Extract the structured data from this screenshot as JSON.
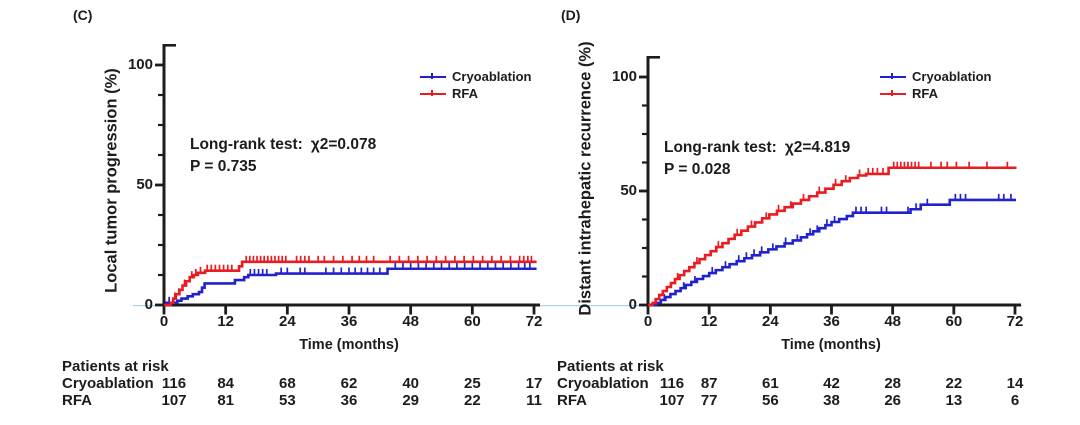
{
  "decor": {
    "zero_line_color": "#aad5ea",
    "axis_color": "#1c1c1c",
    "text_color": "#1c1c1c"
  },
  "chart_data": [
    {
      "panel_label": "(C)",
      "type": "line",
      "subtype": "kaplan-meier-cumulative-incidence-step",
      "title": "",
      "ylabel": "Local tumor progression (%)",
      "xlabel": "Time (months)",
      "xlim": [
        0,
        72
      ],
      "ylim": [
        0,
        100
      ],
      "x_ticks": [
        0,
        12,
        24,
        36,
        48,
        60,
        72
      ],
      "y_ticks_major": [
        0,
        50,
        100
      ],
      "y_tick_labels": [
        "0",
        "50",
        "100"
      ],
      "y_minor_tick_step": 12.5,
      "grid": "off",
      "legend_position": "upper right",
      "stats": {
        "test_label": "Long-rank test:",
        "chi": "χ2=0.078",
        "p": "P = 0.735"
      },
      "series": [
        {
          "name": "Cryoablation",
          "color": "#2222cd",
          "steps": [
            [
              0,
              0
            ],
            [
              0.5,
              0.9
            ],
            [
              2.6,
              1.8
            ],
            [
              3.4,
              2.7
            ],
            [
              4.6,
              3.6
            ],
            [
              5.6,
              4.5
            ],
            [
              6.8,
              5.4
            ],
            [
              7.4,
              7.2
            ],
            [
              7.9,
              9.0
            ],
            [
              13.8,
              10.4
            ],
            [
              15.6,
              11.6
            ],
            [
              16.4,
              12.5
            ],
            [
              21.8,
              13.1
            ],
            [
              43.5,
              15.1
            ],
            [
              72.5,
              15.1
            ]
          ],
          "censor_months": [
            1.0,
            16.8,
            17.6,
            18.4,
            19.2,
            20.0,
            22.8,
            24.0,
            26.5,
            27.4,
            31.5,
            33.0,
            34.5,
            36.0,
            37.2,
            38.4,
            39.6,
            40.8,
            42.0,
            45.0,
            46.5,
            48.0,
            49.5,
            51.0,
            52.5,
            54.0,
            55.5,
            57.0,
            58.5,
            60.0,
            61.5,
            63.0,
            64.5,
            66.0,
            67.5,
            69.0,
            70.2,
            71.2
          ]
        },
        {
          "name": "RFA",
          "color": "#ea1c21",
          "steps": [
            [
              0,
              0
            ],
            [
              1.3,
              0.9
            ],
            [
              1.8,
              2.7
            ],
            [
              2.3,
              4.5
            ],
            [
              3.0,
              6.3
            ],
            [
              3.6,
              8.1
            ],
            [
              4.3,
              9.9
            ],
            [
              5.0,
              11.6
            ],
            [
              5.8,
              12.5
            ],
            [
              6.6,
              13.4
            ],
            [
              8.0,
              14.3
            ],
            [
              14.6,
              16.1
            ],
            [
              15.2,
              18.0
            ],
            [
              72.5,
              18.0
            ]
          ],
          "censor_months": [
            2.1,
            2.9,
            4.0,
            5.4,
            6.2,
            7.1,
            8.4,
            9.2,
            10.0,
            10.8,
            11.6,
            12.4,
            13.2,
            16.0,
            16.7,
            17.4,
            18.1,
            18.8,
            19.5,
            20.2,
            20.9,
            21.6,
            22.3,
            23.0,
            23.7,
            25.8,
            26.6,
            27.4,
            28.2,
            30.0,
            31.2,
            33.0,
            34.8,
            36.6,
            38.0,
            39.4,
            40.8,
            44.0,
            45.8,
            47.6,
            49.4,
            51.2,
            53.0,
            54.8,
            56.6,
            58.4,
            60.2,
            62.0,
            63.8,
            65.6,
            67.4,
            69.2,
            70.0,
            70.8,
            71.5
          ]
        }
      ],
      "at_risk": {
        "title": "Patients at risk",
        "rows": [
          {
            "label": "Cryoablation",
            "counts": [
              "116",
              "84",
              "68",
              "62",
              "40",
              "25",
              "17"
            ]
          },
          {
            "label": "RFA",
            "counts": [
              "107",
              "81",
              "53",
              "36",
              "29",
              "22",
              "11"
            ]
          }
        ]
      }
    },
    {
      "panel_label": "(D)",
      "type": "line",
      "subtype": "kaplan-meier-cumulative-incidence-step",
      "title": "",
      "ylabel": "Distant intrahepatic recurrence (%)",
      "xlabel": "Time (months)",
      "xlim": [
        0,
        72
      ],
      "ylim": [
        0,
        100
      ],
      "x_ticks": [
        0,
        12,
        24,
        36,
        48,
        60,
        72
      ],
      "y_ticks_major": [
        0,
        50,
        100
      ],
      "y_tick_labels": [
        "0",
        "50",
        "100"
      ],
      "y_minor_tick_step": 12.5,
      "grid": "off",
      "legend_position": "upper right",
      "stats": {
        "test_label": "Long-rank test:",
        "chi": "χ2=4.819",
        "p": "P = 0.028"
      },
      "series": [
        {
          "name": "Cryoablation",
          "color": "#2222cd",
          "steps": [
            [
              0,
              0
            ],
            [
              1.6,
              0.9
            ],
            [
              2.5,
              2.2
            ],
            [
              3.4,
              3.5
            ],
            [
              4.4,
              4.8
            ],
            [
              5.4,
              6.1
            ],
            [
              6.4,
              7.4
            ],
            [
              7.4,
              8.8
            ],
            [
              8.5,
              10.1
            ],
            [
              9.6,
              11.4
            ],
            [
              10.8,
              12.7
            ],
            [
              12.0,
              14.0
            ],
            [
              13.3,
              15.3
            ],
            [
              14.6,
              16.6
            ],
            [
              16.0,
              17.9
            ],
            [
              17.4,
              19.2
            ],
            [
              18.9,
              20.5
            ],
            [
              20.4,
              21.8
            ],
            [
              22.0,
              23.1
            ],
            [
              23.6,
              24.4
            ],
            [
              25.2,
              25.7
            ],
            [
              26.8,
              27.0
            ],
            [
              28.4,
              28.3
            ],
            [
              30.0,
              29.7
            ],
            [
              31.2,
              31.0
            ],
            [
              32.4,
              32.3
            ],
            [
              33.6,
              33.7
            ],
            [
              34.8,
              35.0
            ],
            [
              36.0,
              36.4
            ],
            [
              37.5,
              37.7
            ],
            [
              39.0,
              39.0
            ],
            [
              40.2,
              40.5
            ],
            [
              51.5,
              42.0
            ],
            [
              53.5,
              44.0
            ],
            [
              59.2,
              46.1
            ],
            [
              72.2,
              46.1
            ]
          ],
          "censor_months": [
            3.2,
            7.0,
            9.2,
            12.6,
            15.2,
            17.8,
            19.3,
            20.8,
            22.3,
            24.5,
            27.0,
            29.3,
            31.8,
            33.2,
            35.1,
            36.6,
            40.8,
            41.8,
            42.8,
            45.8,
            46.8,
            51.0,
            52.6,
            54.8,
            60.3,
            61.3,
            62.3,
            68.8,
            69.8,
            71.2
          ]
        },
        {
          "name": "RFA",
          "color": "#ea1c21",
          "steps": [
            [
              0,
              0
            ],
            [
              0.9,
              0.9
            ],
            [
              1.5,
              2.6
            ],
            [
              2.2,
              4.4
            ],
            [
              2.9,
              6.1
            ],
            [
              3.7,
              7.9
            ],
            [
              4.5,
              9.6
            ],
            [
              5.3,
              11.4
            ],
            [
              6.2,
              13.1
            ],
            [
              7.1,
              14.9
            ],
            [
              8.1,
              16.6
            ],
            [
              9.1,
              18.4
            ],
            [
              10.1,
              20.1
            ],
            [
              11.2,
              21.9
            ],
            [
              12.3,
              23.6
            ],
            [
              13.4,
              25.4
            ],
            [
              14.6,
              27.1
            ],
            [
              15.8,
              29.0
            ],
            [
              17.0,
              30.8
            ],
            [
              18.3,
              32.6
            ],
            [
              19.6,
              34.4
            ],
            [
              21.0,
              36.2
            ],
            [
              22.4,
              38.0
            ],
            [
              23.8,
              39.7
            ],
            [
              25.3,
              41.3
            ],
            [
              26.8,
              42.9
            ],
            [
              28.4,
              44.5
            ],
            [
              30.0,
              46.1
            ],
            [
              31.6,
              47.7
            ],
            [
              33.2,
              49.3
            ],
            [
              34.8,
              51.0
            ],
            [
              36.4,
              52.7
            ],
            [
              38.0,
              54.3
            ],
            [
              39.6,
              55.7
            ],
            [
              41.2,
              56.8
            ],
            [
              42.8,
              57.5
            ],
            [
              47.2,
              60.2
            ],
            [
              72.3,
              60.2
            ]
          ],
          "censor_months": [
            5.8,
            9.6,
            13.8,
            17.5,
            20.3,
            23.2,
            25.6,
            28.0,
            30.5,
            33.6,
            36.8,
            38.8,
            41.5,
            43.2,
            44.1,
            45.0,
            46.1,
            48.2,
            48.9,
            49.6,
            50.3,
            51.0,
            51.7,
            52.4,
            53.1,
            55.5,
            57.5,
            58.7,
            60.5,
            63.0,
            66.5,
            70.5
          ]
        }
      ],
      "at_risk": {
        "title": "Patients at risk",
        "rows": [
          {
            "label": "Cryoablation",
            "counts": [
              "116",
              "87",
              "61",
              "42",
              "28",
              "22",
              "14"
            ]
          },
          {
            "label": "RFA",
            "counts": [
              "107",
              "77",
              "56",
              "38",
              "26",
              "13",
              "6"
            ]
          }
        ]
      }
    }
  ]
}
